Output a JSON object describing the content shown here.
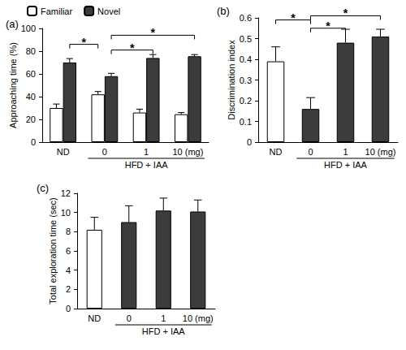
{
  "chart_data": [
    {
      "type": "bar",
      "title": "(a)",
      "y_label": "Approaching time (%)",
      "categories": [
        "ND",
        "0",
        "1",
        "10 (mg)"
      ],
      "group_label": {
        "text": "HFD + IAA",
        "from": "0",
        "to": "10 (mg)"
      },
      "series": [
        {
          "name": "Familiar",
          "color": "#ffffff",
          "values": [
            30,
            42,
            26,
            24.5
          ],
          "errors": [
            3.5,
            2.5,
            3,
            1.5
          ]
        },
        {
          "name": "Novel",
          "color": "#3c3c3c",
          "values": [
            70,
            58,
            74,
            75.5
          ],
          "errors": [
            3.5,
            2.5,
            3,
            1.5
          ]
        }
      ],
      "ylim": [
        0,
        100
      ],
      "yticks": [
        0,
        20,
        40,
        60,
        80,
        100
      ],
      "grid": false,
      "legend": "top left",
      "significance": [
        {
          "from": "ND",
          "from_series": "Novel",
          "to": "0",
          "to_series": "Familiar",
          "y": 86,
          "label": "*"
        },
        {
          "from": "0",
          "from_series": "Novel",
          "to": "1",
          "to_series": "Novel",
          "y": 81,
          "label": "*"
        },
        {
          "from": "0",
          "from_series": "Novel",
          "to": "10 (mg)",
          "to_series": "Novel",
          "y": 94,
          "label": "*"
        }
      ]
    },
    {
      "type": "bar",
      "title": "(b)",
      "y_label": "Discrimination index",
      "categories": [
        "ND",
        "0",
        "1",
        "10 (mg)"
      ],
      "group_label": {
        "text": "HFD + IAA",
        "from": "0",
        "to": "10 (mg)"
      },
      "values": [
        0.39,
        0.16,
        0.48,
        0.51
      ],
      "errors": [
        0.07,
        0.055,
        0.065,
        0.035
      ],
      "colors": [
        "#ffffff",
        "#3c3c3c",
        "#3c3c3c",
        "#3c3c3c"
      ],
      "ylim": [
        0,
        0.6
      ],
      "yticks": [
        0,
        0.1,
        0.2,
        0.3,
        0.4,
        0.5,
        0.6
      ],
      "grid": false,
      "significance": [
        {
          "from": "ND",
          "to": "0",
          "y": 0.59,
          "label": "*"
        },
        {
          "from": "0",
          "to": "1",
          "y": 0.55,
          "label": "*"
        },
        {
          "from": "0",
          "to": "10 (mg)",
          "y": 0.61,
          "label": "*"
        }
      ]
    },
    {
      "type": "bar",
      "title": "(c)",
      "y_label": "Total exploration time (sec)",
      "categories": [
        "ND",
        "0",
        "1",
        "10 (mg)"
      ],
      "group_label": {
        "text": "HFD + IAA",
        "from": "0",
        "to": "10 (mg)"
      },
      "values": [
        8.2,
        9.0,
        10.2,
        10.1
      ],
      "errors": [
        1.3,
        1.7,
        1.3,
        1.2
      ],
      "colors": [
        "#ffffff",
        "#3c3c3c",
        "#3c3c3c",
        "#3c3c3c"
      ],
      "ylim": [
        0,
        12
      ],
      "yticks": [
        0,
        2,
        4,
        6,
        8,
        10,
        12
      ],
      "grid": false
    }
  ]
}
